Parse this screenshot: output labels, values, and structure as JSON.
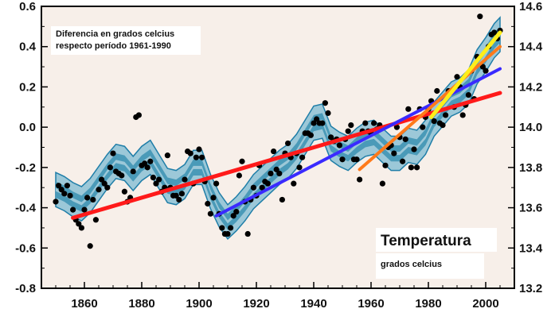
{
  "chart_data": {
    "type": "scatter",
    "title": "",
    "xlabel": "",
    "ylabel_left": "",
    "ylabel_right": "",
    "xlim": [
      1845,
      2010
    ],
    "ylim": [
      -0.8,
      0.6
    ],
    "ylim_right": [
      13.2,
      14.6
    ],
    "x_ticks": [
      1860,
      1880,
      1900,
      1920,
      1940,
      1960,
      1980,
      2000
    ],
    "y_ticks_left": [
      0.6,
      0.4,
      0.2,
      0.0,
      -0.2,
      -0.4,
      -0.6,
      -0.8
    ],
    "y_ticks_left_labels": [
      "0.6",
      "0.4",
      "0.2",
      "0.0",
      "-0.2",
      "-0.4",
      "-0.6",
      "-0.8"
    ],
    "y_ticks_right_labels": [
      "14.6",
      "14.4",
      "14.2",
      "14.0",
      "13.8",
      "13.6",
      "13.4",
      "13.2"
    ],
    "grid": false,
    "annotations": {
      "note_line1": "Diferencia en grados celcius",
      "note_line2": "respecto período 1961-1990",
      "box_title": "Temperatura",
      "box_subtitle": "grados celcius"
    },
    "colors": {
      "background": "#f7efe9",
      "band_outer": "#9cc8d8",
      "band_mid": "#4a9ab8",
      "band_line": "#1f7ea8",
      "points": "#000000"
    },
    "smoothed": {
      "x": [
        1850,
        1853,
        1856,
        1859,
        1862,
        1865,
        1868,
        1871,
        1874,
        1877,
        1880,
        1883,
        1886,
        1889,
        1892,
        1895,
        1898,
        1901,
        1904,
        1907,
        1910,
        1913,
        1916,
        1919,
        1922,
        1925,
        1928,
        1931,
        1934,
        1937,
        1940,
        1943,
        1946,
        1949,
        1952,
        1955,
        1958,
        1961,
        1964,
        1967,
        1970,
        1973,
        1976,
        1979,
        1982,
        1985,
        1988,
        1991,
        1994,
        1997,
        2000,
        2003,
        2005
      ],
      "y": [
        -0.31,
        -0.33,
        -0.36,
        -0.38,
        -0.34,
        -0.28,
        -0.22,
        -0.17,
        -0.18,
        -0.23,
        -0.18,
        -0.15,
        -0.22,
        -0.29,
        -0.3,
        -0.27,
        -0.2,
        -0.2,
        -0.32,
        -0.41,
        -0.47,
        -0.43,
        -0.38,
        -0.32,
        -0.28,
        -0.24,
        -0.2,
        -0.17,
        -0.12,
        -0.05,
        0.02,
        0.03,
        -0.08,
        -0.11,
        -0.13,
        -0.09,
        -0.06,
        -0.05,
        -0.09,
        -0.13,
        -0.13,
        -0.09,
        -0.1,
        -0.05,
        0.04,
        0.09,
        0.14,
        0.16,
        0.2,
        0.3,
        0.36,
        0.43,
        0.46
      ],
      "band_outer_halfwidth": 0.085,
      "band_mid_halfwidth": 0.04
    },
    "points": [
      [
        1850,
        -0.37
      ],
      [
        1851,
        -0.29
      ],
      [
        1852,
        -0.31
      ],
      [
        1853,
        -0.33
      ],
      [
        1854,
        -0.29
      ],
      [
        1855,
        -0.34
      ],
      [
        1856,
        -0.41
      ],
      [
        1857,
        -0.46
      ],
      [
        1858,
        -0.48
      ],
      [
        1859,
        -0.5
      ],
      [
        1860,
        -0.41
      ],
      [
        1861,
        -0.35
      ],
      [
        1862,
        -0.59
      ],
      [
        1863,
        -0.36
      ],
      [
        1864,
        -0.46
      ],
      [
        1865,
        -0.31
      ],
      [
        1866,
        -0.26
      ],
      [
        1867,
        -0.28
      ],
      [
        1868,
        -0.3
      ],
      [
        1869,
        -0.2
      ],
      [
        1870,
        -0.13
      ],
      [
        1871,
        -0.22
      ],
      [
        1872,
        -0.23
      ],
      [
        1873,
        -0.24
      ],
      [
        1874,
        -0.32
      ],
      [
        1875,
        -0.37
      ],
      [
        1876,
        -0.35
      ],
      [
        1877,
        -0.22
      ],
      [
        1878,
        0.05
      ],
      [
        1879,
        0.06
      ],
      [
        1880,
        -0.19
      ],
      [
        1881,
        -0.18
      ],
      [
        1882,
        -0.2
      ],
      [
        1883,
        -0.17
      ],
      [
        1884,
        -0.25
      ],
      [
        1885,
        -0.28
      ],
      [
        1886,
        -0.26
      ],
      [
        1887,
        -0.32
      ],
      [
        1888,
        -0.3
      ],
      [
        1889,
        -0.14
      ],
      [
        1890,
        -0.3
      ],
      [
        1891,
        -0.34
      ],
      [
        1892,
        -0.34
      ],
      [
        1893,
        -0.36
      ],
      [
        1894,
        -0.33
      ],
      [
        1895,
        -0.26
      ],
      [
        1896,
        -0.12
      ],
      [
        1897,
        -0.13
      ],
      [
        1898,
        -0.28
      ],
      [
        1899,
        -0.15
      ],
      [
        1900,
        -0.11
      ],
      [
        1901,
        -0.15
      ],
      [
        1902,
        -0.27
      ],
      [
        1903,
        -0.38
      ],
      [
        1904,
        -0.43
      ],
      [
        1905,
        -0.35
      ],
      [
        1906,
        -0.28
      ],
      [
        1907,
        -0.43
      ],
      [
        1908,
        -0.5
      ],
      [
        1909,
        -0.53
      ],
      [
        1910,
        -0.53
      ],
      [
        1911,
        -0.5
      ],
      [
        1912,
        -0.44
      ],
      [
        1913,
        -0.42
      ],
      [
        1914,
        -0.24
      ],
      [
        1915,
        -0.17
      ],
      [
        1916,
        -0.37
      ],
      [
        1917,
        -0.53
      ],
      [
        1918,
        -0.36
      ],
      [
        1919,
        -0.3
      ],
      [
        1920,
        -0.34
      ],
      [
        1921,
        -0.19
      ],
      [
        1922,
        -0.3
      ],
      [
        1923,
        -0.27
      ],
      [
        1924,
        -0.28
      ],
      [
        1925,
        -0.23
      ],
      [
        1926,
        -0.12
      ],
      [
        1927,
        -0.21
      ],
      [
        1928,
        -0.23
      ],
      [
        1929,
        -0.36
      ],
      [
        1930,
        -0.13
      ],
      [
        1931,
        -0.08
      ],
      [
        1932,
        -0.15
      ],
      [
        1933,
        -0.28
      ],
      [
        1934,
        -0.13
      ],
      [
        1935,
        -0.2
      ],
      [
        1936,
        -0.15
      ],
      [
        1937,
        -0.03
      ],
      [
        1938,
        -0.03
      ],
      [
        1939,
        -0.04
      ],
      [
        1940,
        0.02
      ],
      [
        1941,
        0.04
      ],
      [
        1942,
        0.02
      ],
      [
        1943,
        0.02
      ],
      [
        1944,
        0.12
      ],
      [
        1945,
        0.07
      ],
      [
        1946,
        -0.05
      ],
      [
        1947,
        -0.07
      ],
      [
        1948,
        -0.06
      ],
      [
        1949,
        -0.09
      ],
      [
        1950,
        -0.16
      ],
      [
        1951,
        -0.06
      ],
      [
        1952,
        -0.02
      ],
      [
        1953,
        0.01
      ],
      [
        1954,
        -0.16
      ],
      [
        1955,
        -0.16
      ],
      [
        1956,
        -0.26
      ],
      [
        1957,
        -0.02
      ],
      [
        1958,
        0.02
      ],
      [
        1959,
        -0.02
      ],
      [
        1960,
        -0.03
      ],
      [
        1961,
        0.02
      ],
      [
        1962,
        -0.01
      ],
      [
        1963,
        0.01
      ],
      [
        1964,
        -0.28
      ],
      [
        1965,
        -0.19
      ],
      [
        1966,
        -0.1
      ],
      [
        1967,
        -0.09
      ],
      [
        1968,
        -0.13
      ],
      [
        1969,
        0.0
      ],
      [
        1970,
        -0.05
      ],
      [
        1971,
        -0.17
      ],
      [
        1972,
        -0.06
      ],
      [
        1973,
        0.09
      ],
      [
        1974,
        -0.2
      ],
      [
        1975,
        -0.11
      ],
      [
        1976,
        -0.2
      ],
      [
        1977,
        0.09
      ],
      [
        1978,
        0.0
      ],
      [
        1979,
        0.05
      ],
      [
        1980,
        0.09
      ],
      [
        1981,
        0.13
      ],
      [
        1982,
        0.03
      ],
      [
        1983,
        0.18
      ],
      [
        1984,
        0.02
      ],
      [
        1985,
        0.01
      ],
      [
        1986,
        0.06
      ],
      [
        1987,
        0.18
      ],
      [
        1988,
        0.18
      ],
      [
        1989,
        0.1
      ],
      [
        1990,
        0.25
      ],
      [
        1991,
        0.2
      ],
      [
        1992,
        0.06
      ],
      [
        1993,
        0.11
      ],
      [
        1994,
        0.16
      ],
      [
        1995,
        0.28
      ],
      [
        1996,
        0.14
      ],
      [
        1997,
        0.35
      ],
      [
        1998,
        0.55
      ],
      [
        1999,
        0.3
      ],
      [
        2000,
        0.28
      ],
      [
        2001,
        0.4
      ],
      [
        2002,
        0.46
      ],
      [
        2003,
        0.47
      ],
      [
        2004,
        0.44
      ],
      [
        2005,
        0.48
      ]
    ],
    "trend_lines": [
      {
        "color": "#ff1a1a",
        "x": [
          1856,
          2005
        ],
        "y": [
          -0.45,
          0.17
        ],
        "width": 5
      },
      {
        "color": "#3a2aff",
        "x": [
          1906,
          2005
        ],
        "y": [
          -0.44,
          0.29
        ],
        "width": 4
      },
      {
        "color": "#ff7a1a",
        "x": [
          1956,
          2005
        ],
        "y": [
          -0.21,
          0.4
        ],
        "width": 4
      },
      {
        "color": "#ffee1a",
        "x": [
          1981,
          2005
        ],
        "y": [
          0.05,
          0.47
        ],
        "width": 5
      }
    ]
  }
}
